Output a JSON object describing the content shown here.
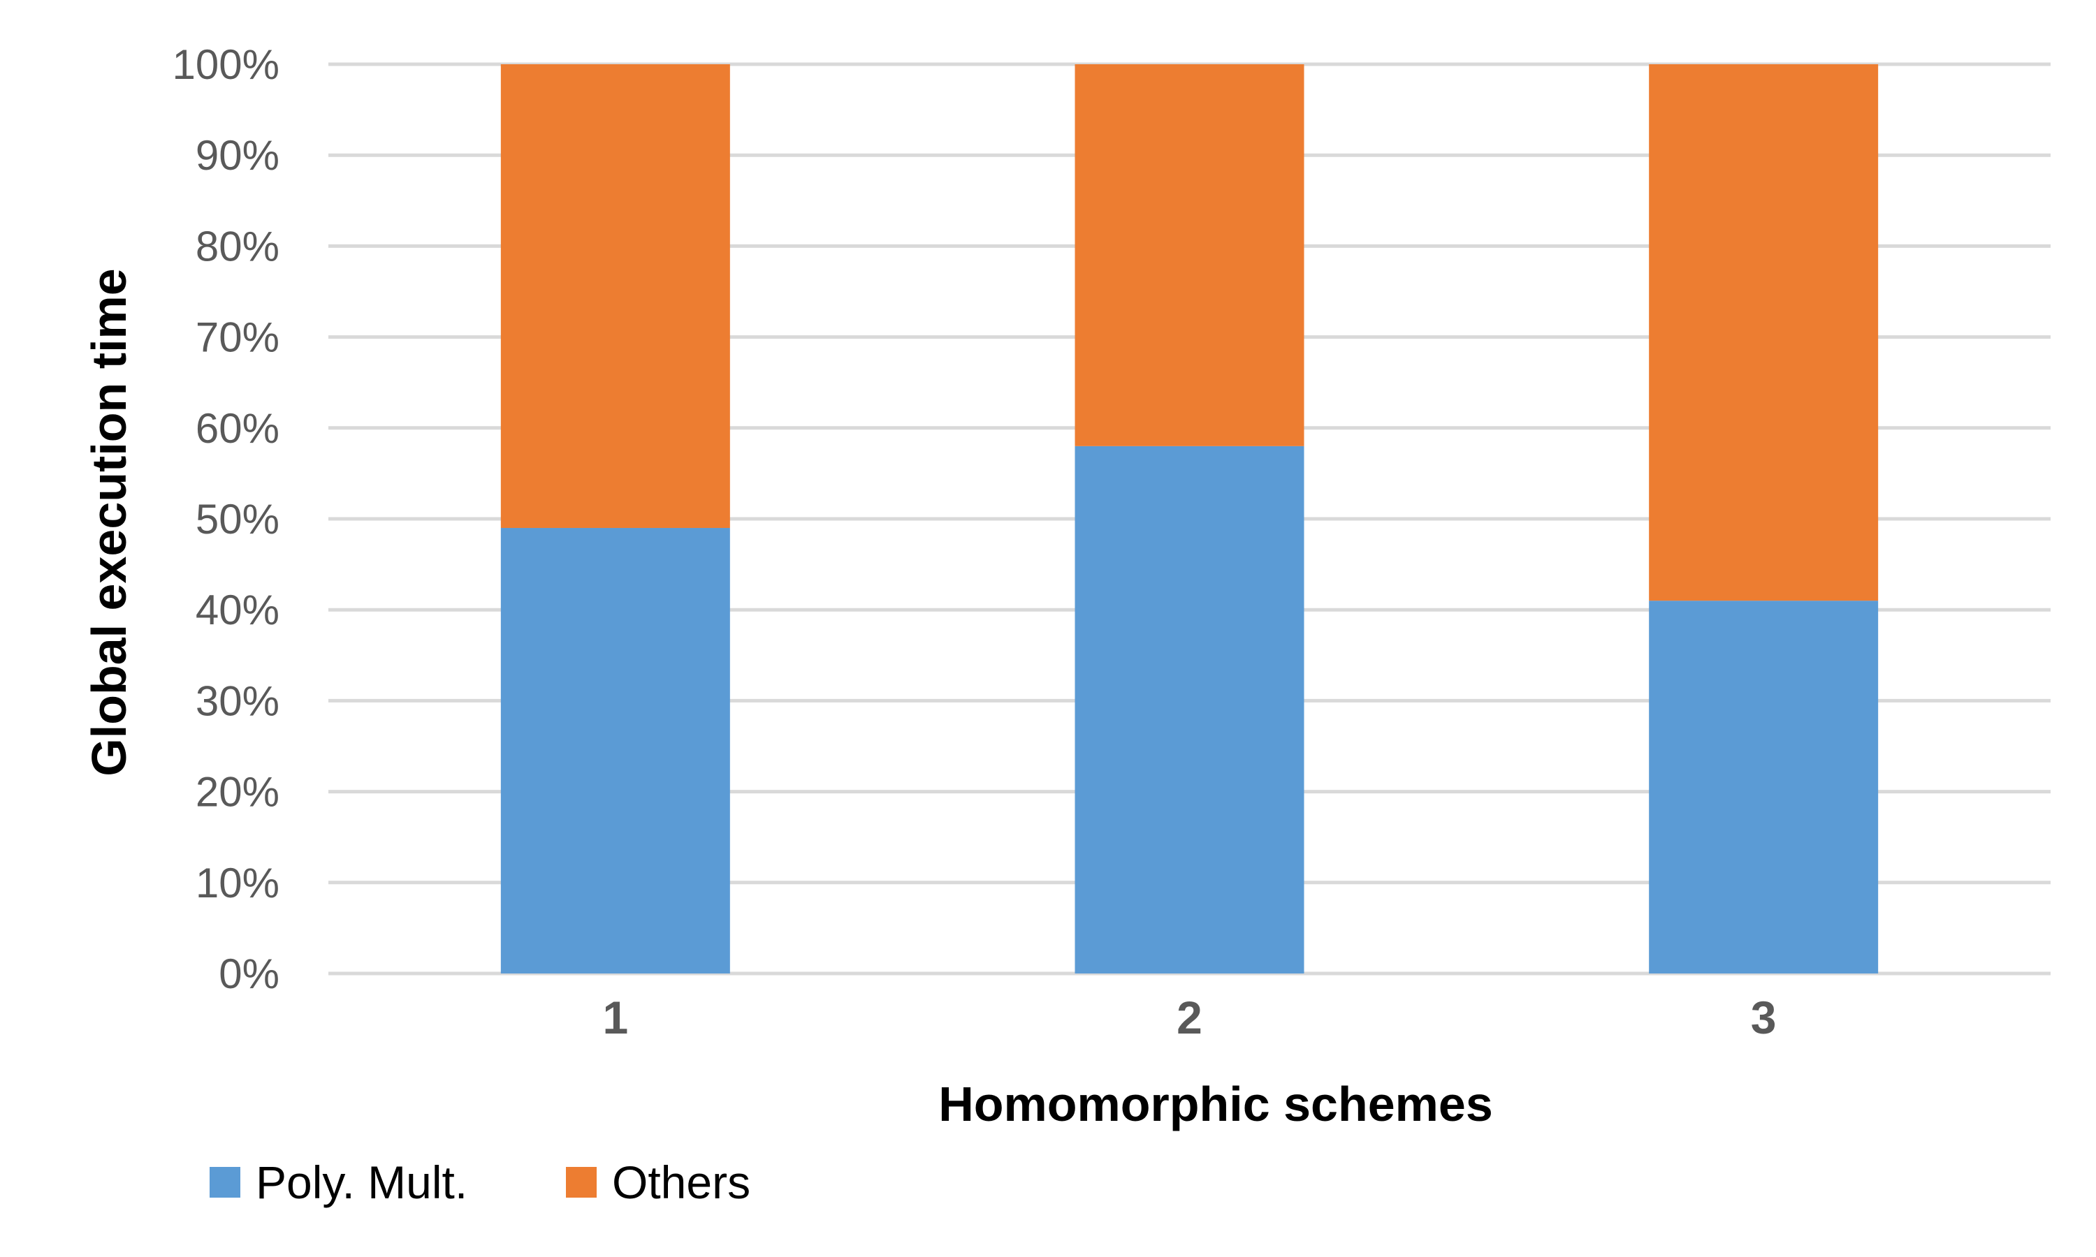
{
  "chart_data": {
    "type": "bar",
    "stacked": true,
    "categories": [
      "1",
      "2",
      "3"
    ],
    "series": [
      {
        "name": "Poly. Mult.",
        "values": [
          49,
          58,
          41
        ],
        "color": "#5b9bd5"
      },
      {
        "name": "Others",
        "values": [
          51,
          42,
          59
        ],
        "color": "#ed7d31"
      }
    ],
    "xlabel": "Homomorphic schemes",
    "ylabel": "Global execution time",
    "ylim": [
      0,
      100
    ],
    "yticks": [
      "0%",
      "10%",
      "20%",
      "30%",
      "40%",
      "50%",
      "60%",
      "70%",
      "80%",
      "90%",
      "100%"
    ],
    "grid": true,
    "legend": "bottom-left"
  }
}
